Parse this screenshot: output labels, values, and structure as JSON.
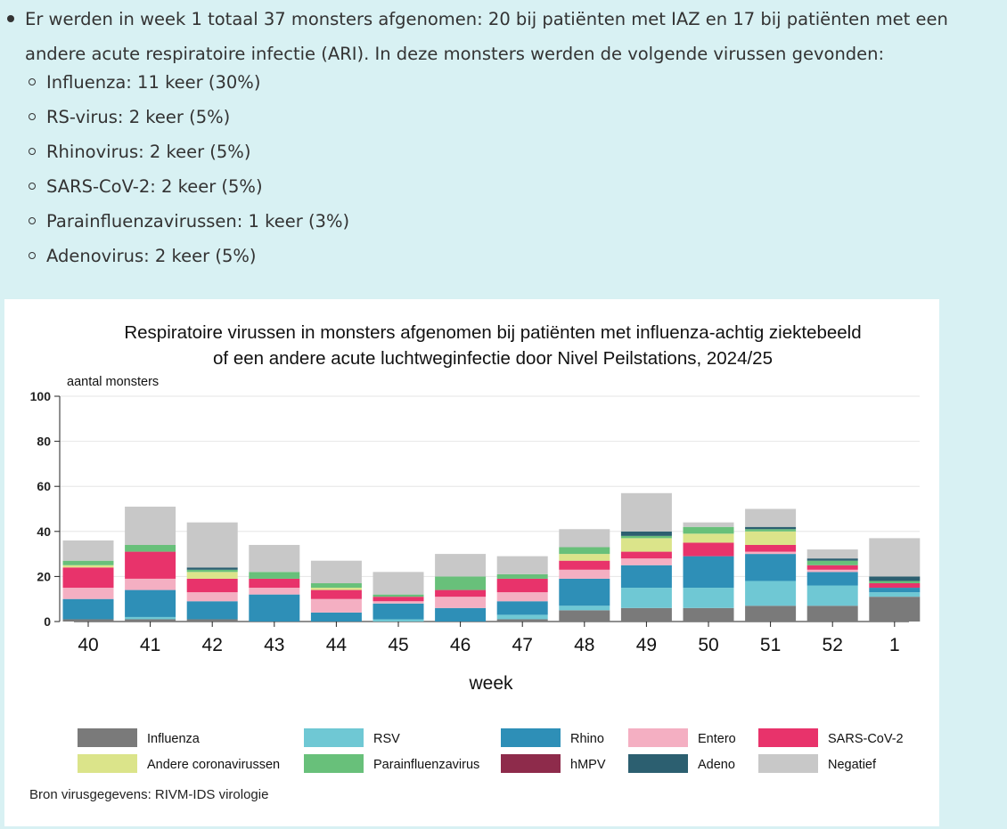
{
  "summary": {
    "paragraph": "Er werden in week 1 totaal 37 monsters afgenomen: 20 bij patiënten met IAZ en 17 bij patiënten met een andere acute respiratoire infectie (ARI). In deze monsters werden de volgende virussen gevonden:",
    "items": [
      "Influenza: 11 keer (30%)",
      "RS-virus: 2 keer (5%)",
      "Rhinovirus: 2 keer (5%)",
      "SARS-CoV-2: 2 keer (5%)",
      "Parainfluenzavirussen: 1 keer (3%)",
      "Adenovirus: 2 keer (5%)"
    ]
  },
  "source": "Bron virusgegevens: RIVM-IDS virologie",
  "chart_data": {
    "type": "bar",
    "stacked": true,
    "title_lines": [
      "Respiratoire virussen in monsters afgenomen bij patiënten met influenza-achtig ziektebeeld",
      "of een andere acute luchtweginfectie door Nivel Peilstations, 2024/25"
    ],
    "xlabel": "week",
    "ylabel": "aantal monsters",
    "ylim": [
      0,
      100
    ],
    "yticks": [
      0,
      20,
      40,
      60,
      80,
      100
    ],
    "grid": true,
    "legend_position": "bottom",
    "categories": [
      "40",
      "41",
      "42",
      "43",
      "44",
      "45",
      "46",
      "47",
      "48",
      "49",
      "50",
      "51",
      "52",
      "1"
    ],
    "series": [
      {
        "name": "Influenza",
        "color": "#7a7a7a",
        "values": [
          1,
          1,
          1,
          0,
          0,
          0,
          0,
          1,
          5,
          6,
          6,
          7,
          7,
          11
        ]
      },
      {
        "name": "RSV",
        "color": "#6fc8d4",
        "values": [
          0,
          1,
          0,
          0,
          0,
          1,
          0,
          2,
          2,
          9,
          9,
          11,
          9,
          2
        ]
      },
      {
        "name": "Rhino",
        "color": "#2e8fb7",
        "values": [
          9,
          12,
          8,
          12,
          4,
          7,
          6,
          6,
          12,
          10,
          14,
          12,
          6,
          2
        ]
      },
      {
        "name": "Entero",
        "color": "#f4afc2",
        "values": [
          5,
          5,
          4,
          3,
          6,
          1,
          5,
          4,
          4,
          3,
          0,
          1,
          1,
          0
        ]
      },
      {
        "name": "SARS-CoV-2",
        "color": "#e8336b",
        "values": [
          9,
          12,
          6,
          4,
          4,
          2,
          3,
          6,
          4,
          3,
          6,
          3,
          2,
          2
        ]
      },
      {
        "name": "Andere coronavirussen",
        "color": "#dbe48a",
        "values": [
          1,
          0,
          3,
          0,
          1,
          0,
          0,
          0,
          3,
          6,
          4,
          6,
          0,
          0
        ]
      },
      {
        "name": "Parainfluenzavirus",
        "color": "#68c07a",
        "values": [
          2,
          3,
          1,
          3,
          2,
          1,
          6,
          2,
          3,
          1,
          3,
          1,
          2,
          1
        ]
      },
      {
        "name": "hMPV",
        "color": "#8e2b4b",
        "values": [
          0,
          0,
          0,
          0,
          0,
          0,
          0,
          0,
          0,
          0,
          0,
          0,
          0,
          0
        ]
      },
      {
        "name": "Adeno",
        "color": "#2c5f70",
        "values": [
          0,
          0,
          1,
          0,
          0,
          0,
          0,
          0,
          0,
          2,
          0,
          1,
          1,
          2
        ]
      },
      {
        "name": "Negatief",
        "color": "#c8c8c8",
        "values": [
          9,
          17,
          20,
          12,
          10,
          10,
          10,
          8,
          8,
          17,
          2,
          8,
          4,
          17
        ]
      }
    ]
  }
}
